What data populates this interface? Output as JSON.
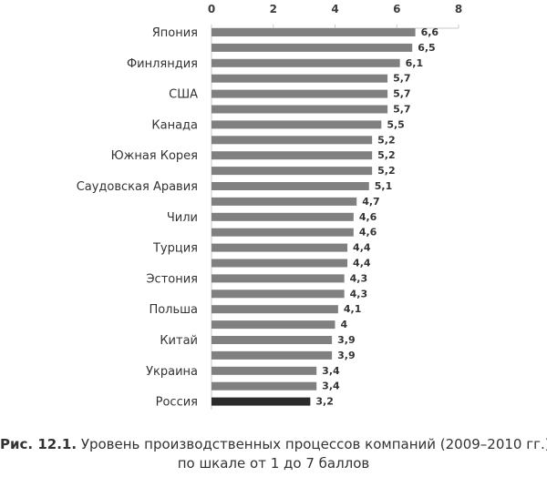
{
  "chart_data": {
    "type": "bar",
    "orientation": "horizontal",
    "categories": [
      "Япония",
      "",
      "Финляндия",
      "",
      "США",
      "",
      "Канада",
      "",
      "Южная Корея",
      "",
      "Саудовская Аравия",
      "",
      "Чили",
      "",
      "Турция",
      "",
      "Эстония",
      "",
      "Польша",
      "",
      "Китай",
      "",
      "Украина",
      "",
      "Россия"
    ],
    "values": [
      6.6,
      6.5,
      6.1,
      5.7,
      5.7,
      5.7,
      5.5,
      5.2,
      5.2,
      5.2,
      5.1,
      4.7,
      4.6,
      4.6,
      4.4,
      4.4,
      4.3,
      4.3,
      4.1,
      4,
      3.9,
      3.9,
      3.4,
      3.4,
      3.2
    ],
    "value_labels": [
      "6,6",
      "6,5",
      "6,1",
      "5,7",
      "5,7",
      "5,7",
      "5,5",
      "5,2",
      "5,2",
      "5,2",
      "5,1",
      "4,7",
      "4,6",
      "4,6",
      "4,4",
      "4,4",
      "4,3",
      "4,3",
      "4,1",
      "4",
      "3,9",
      "3,9",
      "3,4",
      "3,4",
      "3,2"
    ],
    "highlight_index": 24,
    "xlim": [
      0,
      8
    ],
    "xticks": [
      0,
      2,
      4,
      6,
      8
    ],
    "x_axis_position": "top",
    "grid": false,
    "colors": {
      "bar": "#808080",
      "highlight": "#2b2b2b",
      "axis": "#c8c8c8"
    }
  },
  "caption": {
    "prefix": "Рис. 12.1.",
    "line1": "Уровень производственных процессов компаний (2009–2010 гг.)",
    "line2": "по шкале от 1 до 7 баллов"
  }
}
